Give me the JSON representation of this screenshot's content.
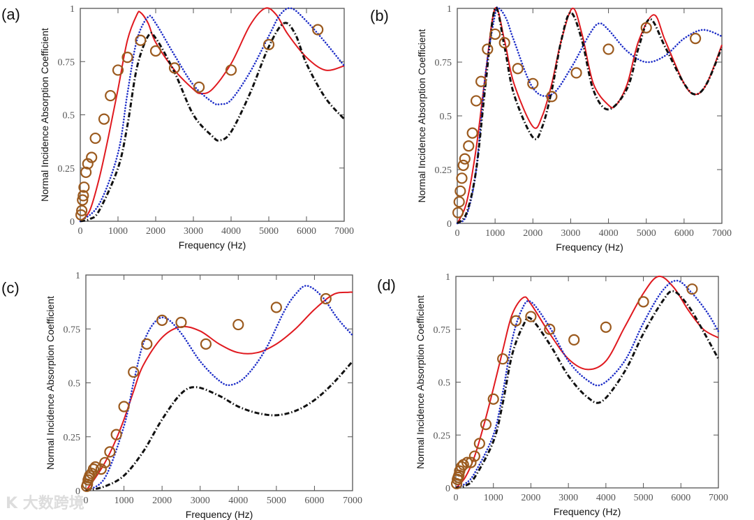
{
  "watermark": "K 大数跨境",
  "colors": {
    "red": "#e0191f",
    "blue": "#1f2fc8",
    "black": "#111111",
    "circles": "#9b5a1e",
    "axis": "#555555"
  },
  "chart_data": [
    {
      "type": "line",
      "panel_label": "(a)",
      "xlabel": "Frequency (Hz)",
      "ylabel": "Normal Incidence Absorption Coefficient",
      "xlim": [
        0,
        7000
      ],
      "ylim": [
        0,
        1
      ],
      "xticks": [
        "0",
        "1000",
        "2000",
        "3000",
        "4000",
        "5000",
        "6000",
        "7000"
      ],
      "yticks": [
        "0",
        "0.25",
        "0.5",
        "0.75",
        "1"
      ],
      "series": [
        {
          "name": "red-solid",
          "style": "solid",
          "color": "red",
          "x": [
            0,
            250,
            500,
            750,
            1000,
            1250,
            1500,
            1600,
            1800,
            2000,
            2500,
            3000,
            3200,
            3500,
            4000,
            4500,
            4900,
            5200,
            5500,
            6000,
            6500,
            7000
          ],
          "y": [
            0,
            0.05,
            0.2,
            0.4,
            0.62,
            0.85,
            0.97,
            0.98,
            0.93,
            0.84,
            0.71,
            0.62,
            0.6,
            0.62,
            0.74,
            0.92,
            1.0,
            0.97,
            0.88,
            0.77,
            0.71,
            0.73
          ]
        },
        {
          "name": "blue-dotted",
          "style": "dotted",
          "color": "blue",
          "x": [
            0,
            500,
            1000,
            1250,
            1500,
            1800,
            2000,
            2500,
            3000,
            3500,
            3700,
            4000,
            4500,
            5000,
            5300,
            5600,
            6000,
            6500,
            7000
          ],
          "y": [
            0,
            0.08,
            0.32,
            0.6,
            0.85,
            0.96,
            0.93,
            0.78,
            0.64,
            0.56,
            0.55,
            0.57,
            0.7,
            0.87,
            0.97,
            1.0,
            0.94,
            0.84,
            0.73
          ]
        },
        {
          "name": "black-dashdot",
          "style": "dashdot",
          "color": "black",
          "x": [
            0,
            250,
            500,
            1000,
            1250,
            1500,
            1800,
            2000,
            2500,
            3000,
            3500,
            3700,
            4000,
            4500,
            5000,
            5400,
            5700,
            6000,
            6500,
            7000
          ],
          "y": [
            0,
            0.01,
            0.05,
            0.25,
            0.45,
            0.72,
            0.87,
            0.86,
            0.7,
            0.5,
            0.4,
            0.38,
            0.42,
            0.6,
            0.82,
            0.93,
            0.88,
            0.74,
            0.58,
            0.48
          ]
        },
        {
          "name": "measured-circles",
          "style": "markers",
          "color": "circles",
          "x": [
            20,
            40,
            60,
            80,
            100,
            150,
            200,
            300,
            400,
            630,
            800,
            1000,
            1250,
            1600,
            2000,
            2500,
            3150,
            4000,
            5000,
            6300
          ],
          "y": [
            0.03,
            0.05,
            0.1,
            0.12,
            0.16,
            0.23,
            0.27,
            0.3,
            0.39,
            0.48,
            0.59,
            0.71,
            0.77,
            0.85,
            0.8,
            0.72,
            0.63,
            0.71,
            0.83,
            0.9
          ]
        }
      ]
    },
    {
      "type": "line",
      "panel_label": "(b)",
      "xlabel": "Frequency (Hz)",
      "ylabel": "Normal Incidence Absorption Coefficient",
      "xlim": [
        0,
        7000
      ],
      "ylim": [
        0,
        1
      ],
      "xticks": [
        "0",
        "1000",
        "2000",
        "3000",
        "4000",
        "5000",
        "6000",
        "7000"
      ],
      "yticks": [
        "0",
        "0.25",
        "0.5",
        "0.75",
        "1"
      ],
      "series": [
        {
          "name": "red-solid",
          "style": "solid",
          "color": "red",
          "x": [
            0,
            250,
            500,
            750,
            1000,
            1250,
            1500,
            2000,
            2250,
            2500,
            2750,
            3050,
            3300,
            3600,
            4000,
            4200,
            4500,
            4800,
            5200,
            5500,
            6000,
            6300,
            6600,
            7000
          ],
          "y": [
            0,
            0.1,
            0.35,
            0.7,
            1.0,
            0.85,
            0.65,
            0.45,
            0.5,
            0.65,
            0.85,
            1.0,
            0.88,
            0.65,
            0.55,
            0.55,
            0.65,
            0.85,
            0.97,
            0.85,
            0.65,
            0.6,
            0.65,
            0.83
          ]
        },
        {
          "name": "blue-dotted",
          "style": "dotted",
          "color": "blue",
          "x": [
            0,
            250,
            500,
            750,
            1000,
            1100,
            1300,
            1500,
            2000,
            2500,
            3000,
            3500,
            3750,
            4000,
            4500,
            5000,
            5500,
            6000,
            6500,
            7000
          ],
          "y": [
            0,
            0.04,
            0.25,
            0.7,
            0.97,
            1.0,
            0.95,
            0.85,
            0.63,
            0.6,
            0.72,
            0.88,
            0.93,
            0.9,
            0.8,
            0.75,
            0.78,
            0.86,
            0.9,
            0.87
          ]
        },
        {
          "name": "black-dashdot",
          "style": "dashdot",
          "color": "black",
          "x": [
            0,
            250,
            500,
            750,
            1000,
            1250,
            1500,
            2000,
            2250,
            2500,
            2750,
            3000,
            3300,
            3600,
            4000,
            4500,
            4800,
            5100,
            5500,
            6000,
            6300,
            6600,
            7000
          ],
          "y": [
            0,
            0.05,
            0.25,
            0.65,
            1.0,
            0.82,
            0.6,
            0.4,
            0.45,
            0.62,
            0.85,
            0.98,
            0.85,
            0.62,
            0.53,
            0.63,
            0.82,
            0.95,
            0.82,
            0.65,
            0.6,
            0.65,
            0.82
          ]
        },
        {
          "name": "measured-circles",
          "style": "markers",
          "color": "circles",
          "x": [
            20,
            50,
            80,
            120,
            160,
            200,
            300,
            400,
            500,
            630,
            800,
            1000,
            1250,
            1600,
            2000,
            2500,
            3150,
            4000,
            5000,
            6300
          ],
          "y": [
            0.05,
            0.1,
            0.15,
            0.21,
            0.27,
            0.3,
            0.36,
            0.42,
            0.57,
            0.66,
            0.81,
            0.88,
            0.84,
            0.72,
            0.65,
            0.59,
            0.7,
            0.81,
            0.91,
            0.86
          ]
        }
      ]
    },
    {
      "type": "line",
      "panel_label": "(c)",
      "xlabel": "Frequency (Hz)",
      "ylabel": "Normal Incidence Absorption Coefficient",
      "xlim": [
        0,
        7000
      ],
      "ylim": [
        0,
        1
      ],
      "xticks": [
        "0",
        "1000",
        "2000",
        "3000",
        "4000",
        "5000",
        "6000",
        "7000"
      ],
      "yticks": [
        "0",
        "0.25",
        "0.5",
        "0.75",
        "1"
      ],
      "series": [
        {
          "name": "red-solid",
          "style": "solid",
          "color": "red",
          "x": [
            0,
            250,
            500,
            750,
            1000,
            1250,
            1500,
            2000,
            2500,
            3000,
            3500,
            4000,
            4500,
            5000,
            5500,
            6000,
            6500,
            6900,
            7000
          ],
          "y": [
            0,
            0.06,
            0.13,
            0.22,
            0.33,
            0.46,
            0.58,
            0.71,
            0.76,
            0.74,
            0.68,
            0.64,
            0.64,
            0.68,
            0.75,
            0.84,
            0.91,
            0.92,
            0.92
          ]
        },
        {
          "name": "blue-dotted",
          "style": "dotted",
          "color": "blue",
          "x": [
            0,
            500,
            1000,
            1250,
            1500,
            1800,
            2100,
            2500,
            3000,
            3500,
            3800,
            4200,
            4700,
            5200,
            5500,
            5800,
            6200,
            6600,
            7000
          ],
          "y": [
            0,
            0.06,
            0.3,
            0.5,
            0.68,
            0.78,
            0.8,
            0.73,
            0.6,
            0.51,
            0.49,
            0.53,
            0.65,
            0.83,
            0.91,
            0.95,
            0.9,
            0.8,
            0.72
          ]
        },
        {
          "name": "black-dashdot",
          "style": "dashdot",
          "color": "black",
          "x": [
            0,
            500,
            1000,
            1500,
            2000,
            2500,
            2900,
            3500,
            4000,
            4500,
            5000,
            5500,
            6000,
            6500,
            7000
          ],
          "y": [
            0,
            0.02,
            0.07,
            0.18,
            0.33,
            0.45,
            0.48,
            0.44,
            0.39,
            0.36,
            0.35,
            0.37,
            0.42,
            0.5,
            0.6
          ]
        },
        {
          "name": "measured-circles",
          "style": "markers",
          "color": "circles",
          "x": [
            20,
            40,
            60,
            80,
            100,
            150,
            200,
            250,
            400,
            500,
            630,
            800,
            1000,
            1250,
            1600,
            2000,
            2500,
            3150,
            4000,
            5000,
            6300
          ],
          "y": [
            0.02,
            0.03,
            0.05,
            0.06,
            0.07,
            0.08,
            0.1,
            0.11,
            0.1,
            0.13,
            0.18,
            0.26,
            0.39,
            0.55,
            0.68,
            0.79,
            0.78,
            0.68,
            0.77,
            0.85,
            0.89
          ]
        }
      ]
    },
    {
      "type": "line",
      "panel_label": "(d)",
      "xlabel": "Frequency (Hz)",
      "ylabel": "Normal Incidence Absorption Coefficient",
      "xlim": [
        0,
        7000
      ],
      "ylim": [
        0,
        1
      ],
      "xticks": [
        "0",
        "1000",
        "2000",
        "3000",
        "4000",
        "5000",
        "6000",
        "7000"
      ],
      "yticks": [
        "0",
        "0.25",
        "0.5",
        "0.75",
        "1"
      ],
      "series": [
        {
          "name": "red-solid",
          "style": "solid",
          "color": "red",
          "x": [
            0,
            250,
            500,
            750,
            1000,
            1250,
            1500,
            1800,
            2000,
            2500,
            3000,
            3500,
            4000,
            4500,
            5000,
            5400,
            5800,
            6200,
            6600,
            7000
          ],
          "y": [
            0,
            0.05,
            0.15,
            0.3,
            0.47,
            0.65,
            0.82,
            0.9,
            0.87,
            0.73,
            0.61,
            0.56,
            0.6,
            0.76,
            0.92,
            1.0,
            0.95,
            0.84,
            0.75,
            0.71
          ]
        },
        {
          "name": "blue-dotted",
          "style": "dotted",
          "color": "blue",
          "x": [
            0,
            250,
            500,
            1000,
            1250,
            1500,
            1750,
            2000,
            2500,
            3000,
            3500,
            3900,
            4500,
            5000,
            5500,
            5900,
            6300,
            6700,
            7000
          ],
          "y": [
            0,
            0.02,
            0.07,
            0.25,
            0.45,
            0.7,
            0.84,
            0.88,
            0.76,
            0.6,
            0.51,
            0.49,
            0.6,
            0.78,
            0.93,
            0.98,
            0.92,
            0.83,
            0.74
          ]
        },
        {
          "name": "black-dashdot",
          "style": "dashdot",
          "color": "black",
          "x": [
            0,
            250,
            500,
            1000,
            1250,
            1500,
            1800,
            2000,
            2500,
            3000,
            3500,
            3900,
            4500,
            5000,
            5500,
            5800,
            6200,
            6600,
            7000
          ],
          "y": [
            0,
            0.01,
            0.05,
            0.22,
            0.4,
            0.63,
            0.77,
            0.8,
            0.68,
            0.53,
            0.43,
            0.41,
            0.55,
            0.73,
            0.88,
            0.93,
            0.86,
            0.74,
            0.61
          ]
        },
        {
          "name": "measured-circles",
          "style": "markers",
          "color": "circles",
          "x": [
            20,
            40,
            60,
            80,
            100,
            150,
            200,
            300,
            400,
            500,
            630,
            800,
            1000,
            1250,
            1600,
            2000,
            2500,
            3150,
            4000,
            5000,
            6300
          ],
          "y": [
            0.02,
            0.04,
            0.05,
            0.06,
            0.08,
            0.1,
            0.11,
            0.12,
            0.12,
            0.15,
            0.21,
            0.3,
            0.42,
            0.61,
            0.79,
            0.81,
            0.75,
            0.7,
            0.76,
            0.88,
            0.94
          ]
        }
      ]
    }
  ]
}
